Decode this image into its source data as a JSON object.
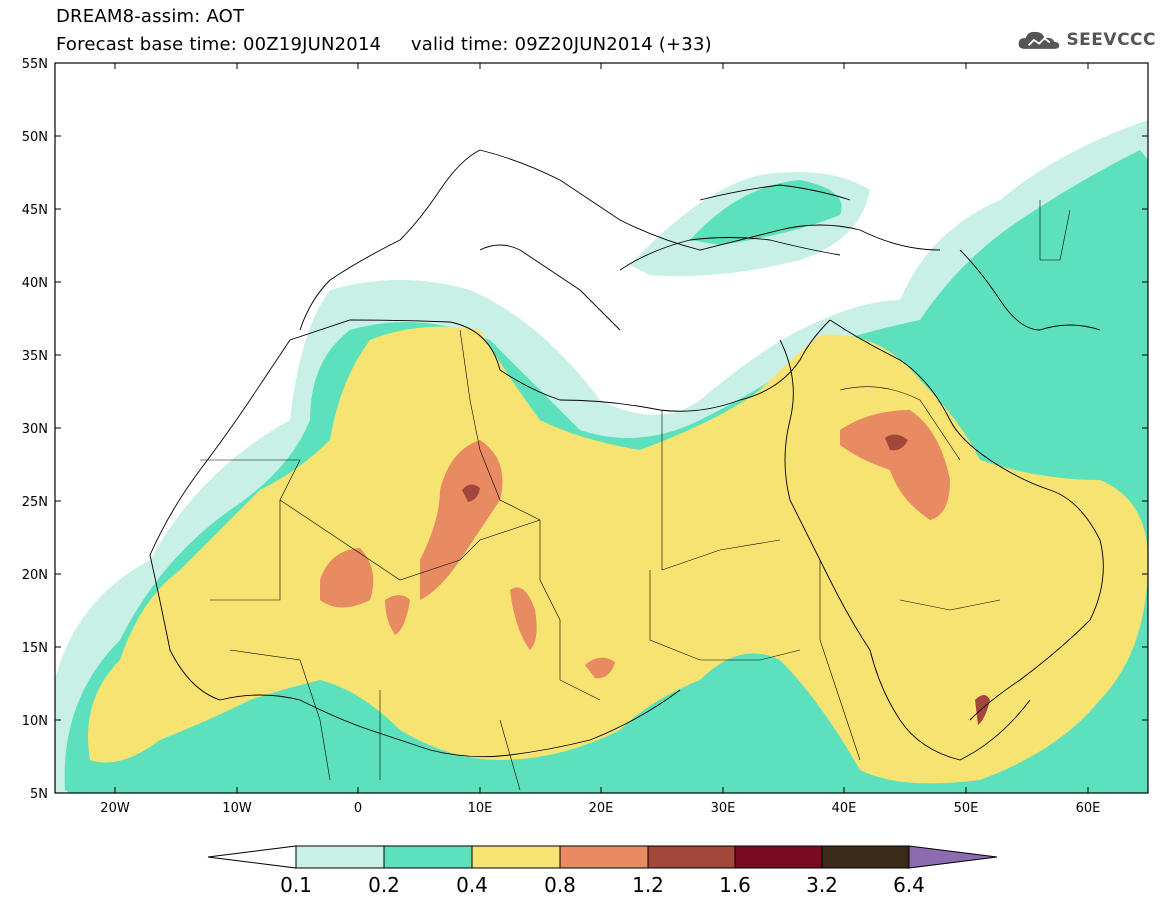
{
  "header": {
    "title": "DREAM8-assim: AOT",
    "forecast_label": "Forecast base time: 00Z19JUN2014",
    "valid_label": "valid time: 09Z20JUN2014 (+33)",
    "logo_text": "SEEVCCC"
  },
  "map": {
    "lat_ticks": [
      "55N",
      "50N",
      "45N",
      "40N",
      "35N",
      "30N",
      "25N",
      "20N",
      "15N",
      "10N",
      "5N"
    ],
    "lon_ticks": [
      "20W",
      "10W",
      "0",
      "10E",
      "20E",
      "30E",
      "40E",
      "50E",
      "60E"
    ],
    "lon_range": [
      -25,
      65
    ],
    "lat_range": [
      5,
      55
    ]
  },
  "colorbar": {
    "levels": [
      "0.1",
      "0.2",
      "0.4",
      "0.8",
      "1.2",
      "1.6",
      "3.2",
      "6.4"
    ],
    "colors": [
      "#ffffff",
      "#c8f0e6",
      "#5de1bd",
      "#f7e372",
      "#e98b62",
      "#a3473c",
      "#7a0a22",
      "#3a2a1a",
      "#8c6bb1"
    ]
  }
}
